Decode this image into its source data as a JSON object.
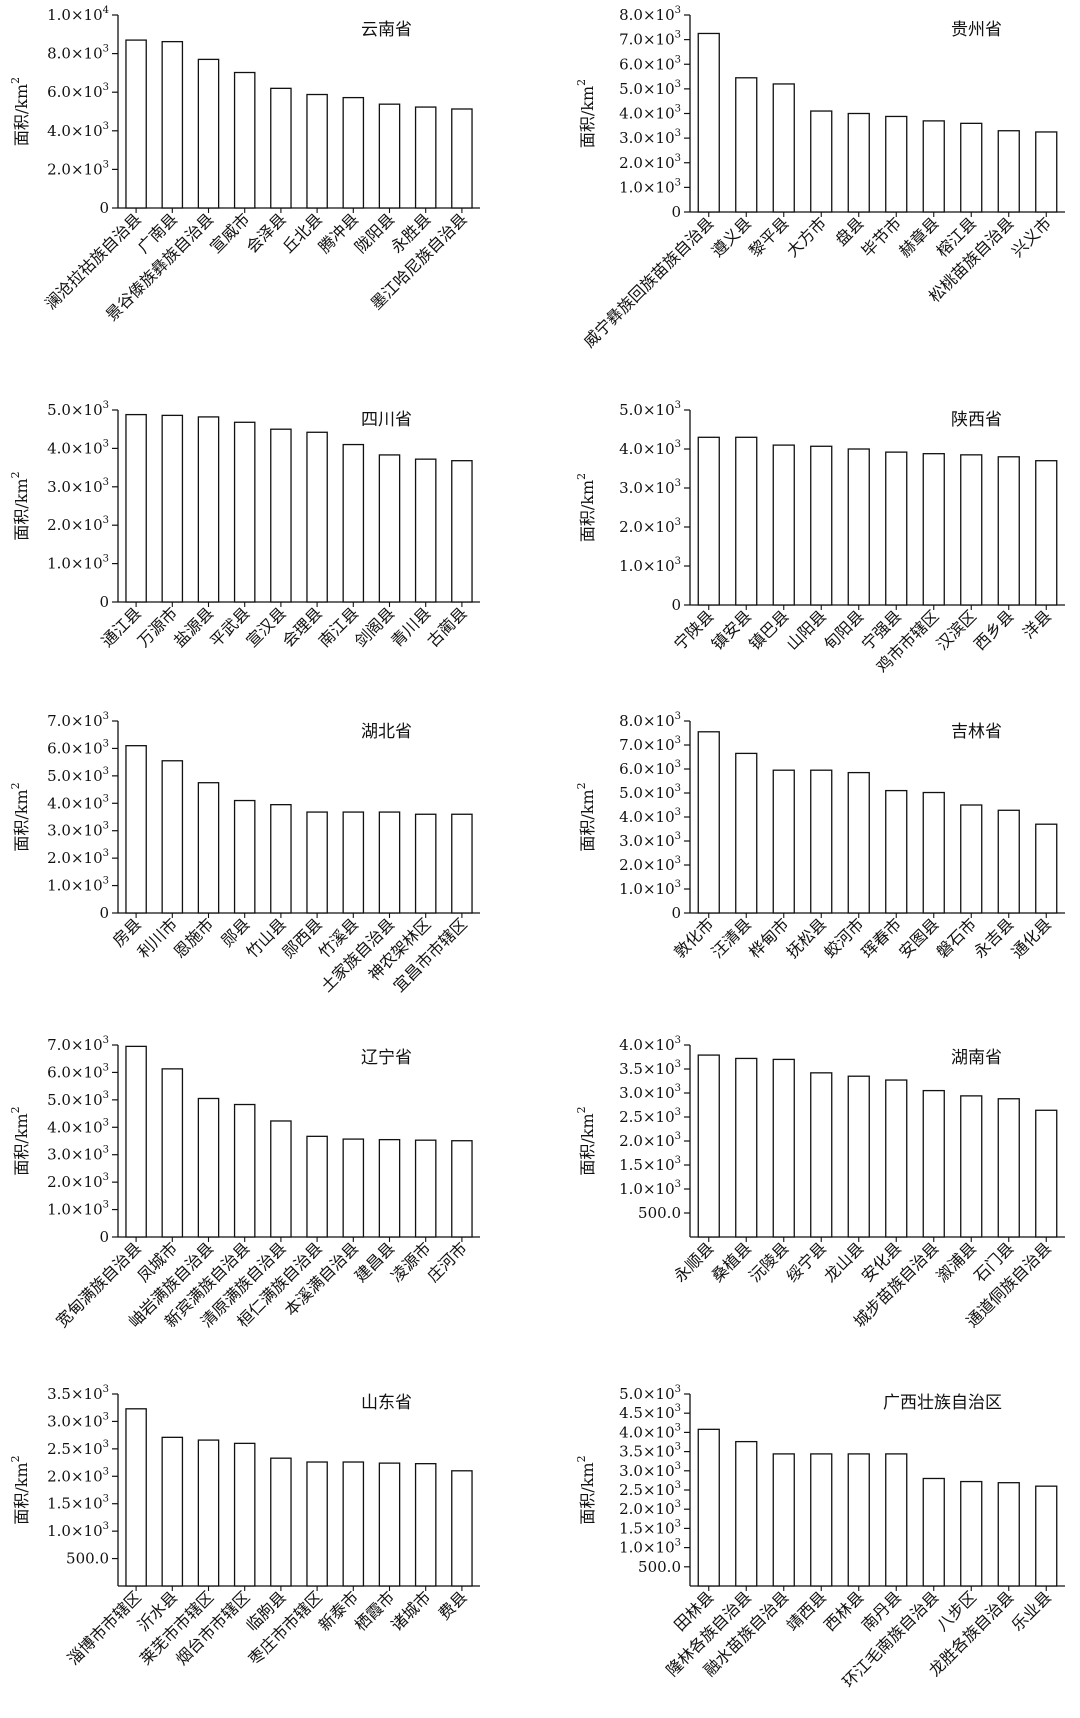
{
  "ylabel_prefix": "面积/km",
  "ylabel_sup": "2",
  "chart_data": [
    {
      "type": "bar",
      "title": "云南省",
      "ylim": [
        0,
        10000
      ],
      "yticks": [
        {
          "v": 0,
          "m": "0",
          "e": ""
        },
        {
          "v": 2000,
          "m": "2.0×10",
          "e": "3"
        },
        {
          "v": 4000,
          "m": "4.0×10",
          "e": "3"
        },
        {
          "v": 6000,
          "m": "6.0×10",
          "e": "3"
        },
        {
          "v": 8000,
          "m": "8.0×10",
          "e": "3"
        },
        {
          "v": 10000,
          "m": "1.0×10",
          "e": "4"
        }
      ],
      "categories": [
        "澜沧拉祜族自治县",
        "广南县",
        "景谷傣族彝族自治县",
        "宣威市",
        "会泽县",
        "丘北县",
        "腾冲县",
        "陇阳县",
        "永胜县",
        "墨江哈尼族自治县"
      ],
      "values": [
        8700,
        8620,
        7700,
        7020,
        6200,
        5880,
        5720,
        5380,
        5230,
        5130
      ]
    },
    {
      "type": "bar",
      "title": "贵州省",
      "ylim": [
        0,
        8000
      ],
      "yticks": [
        {
          "v": 0,
          "m": "0",
          "e": ""
        },
        {
          "v": 1000,
          "m": "1.0×10",
          "e": "3"
        },
        {
          "v": 2000,
          "m": "2.0×10",
          "e": "3"
        },
        {
          "v": 3000,
          "m": "3.0×10",
          "e": "3"
        },
        {
          "v": 4000,
          "m": "4.0×10",
          "e": "3"
        },
        {
          "v": 5000,
          "m": "5.0×10",
          "e": "3"
        },
        {
          "v": 6000,
          "m": "6.0×10",
          "e": "3"
        },
        {
          "v": 7000,
          "m": "7.0×10",
          "e": "3"
        },
        {
          "v": 8000,
          "m": "8.0×10",
          "e": "3"
        }
      ],
      "categories": [
        "威宁彝族回族苗族自治县",
        "遵义县",
        "黎平县",
        "大方市",
        "盘县",
        "毕节市",
        "赫章县",
        "榕江县",
        "松桃苗族自治县",
        "兴义市"
      ],
      "values": [
        7250,
        5450,
        5200,
        4100,
        4000,
        3880,
        3700,
        3600,
        3300,
        3250
      ]
    },
    {
      "type": "bar",
      "title": "四川省",
      "ylim": [
        0,
        5000
      ],
      "yticks": [
        {
          "v": 0,
          "m": "0",
          "e": ""
        },
        {
          "v": 1000,
          "m": "1.0×10",
          "e": "3"
        },
        {
          "v": 2000,
          "m": "2.0×10",
          "e": "3"
        },
        {
          "v": 3000,
          "m": "3.0×10",
          "e": "3"
        },
        {
          "v": 4000,
          "m": "4.0×10",
          "e": "3"
        },
        {
          "v": 5000,
          "m": "5.0×10",
          "e": "3"
        }
      ],
      "categories": [
        "通江县",
        "万源市",
        "盐源县",
        "平武县",
        "宣汉县",
        "会理县",
        "南江县",
        "剑阁县",
        "青川县",
        "古蔺县"
      ],
      "values": [
        4880,
        4860,
        4820,
        4680,
        4500,
        4420,
        4100,
        3830,
        3720,
        3680
      ]
    },
    {
      "type": "bar",
      "title": "陕西省",
      "ylim": [
        0,
        5000
      ],
      "yticks": [
        {
          "v": 0,
          "m": "0",
          "e": ""
        },
        {
          "v": 1000,
          "m": "1.0×10",
          "e": "3"
        },
        {
          "v": 2000,
          "m": "2.0×10",
          "e": "3"
        },
        {
          "v": 3000,
          "m": "3.0×10",
          "e": "3"
        },
        {
          "v": 4000,
          "m": "4.0×10",
          "e": "3"
        },
        {
          "v": 5000,
          "m": "5.0×10",
          "e": "3"
        }
      ],
      "categories": [
        "宁陕县",
        "镇安县",
        "镇巴县",
        "山阳县",
        "旬阳县",
        "宁强县",
        "鸡市市辖区",
        "汉滨区",
        "西乡县",
        "洋县"
      ],
      "values": [
        4300,
        4300,
        4100,
        4070,
        4000,
        3920,
        3880,
        3850,
        3800,
        3700
      ]
    },
    {
      "type": "bar",
      "title": "湖北省",
      "ylim": [
        0,
        7000
      ],
      "yticks": [
        {
          "v": 0,
          "m": "0",
          "e": ""
        },
        {
          "v": 1000,
          "m": "1.0×10",
          "e": "3"
        },
        {
          "v": 2000,
          "m": "2.0×10",
          "e": "3"
        },
        {
          "v": 3000,
          "m": "3.0×10",
          "e": "3"
        },
        {
          "v": 4000,
          "m": "4.0×10",
          "e": "3"
        },
        {
          "v": 5000,
          "m": "5.0×10",
          "e": "3"
        },
        {
          "v": 6000,
          "m": "6.0×10",
          "e": "3"
        },
        {
          "v": 7000,
          "m": "7.0×10",
          "e": "3"
        }
      ],
      "categories": [
        "房县",
        "利川市",
        "恩施市",
        "郧县",
        "竹山县",
        "郧西县",
        "竹溪县",
        "土家族自治县",
        "神农架林区",
        "宜昌市市辖区"
      ],
      "values": [
        6100,
        5550,
        4750,
        4100,
        3950,
        3680,
        3680,
        3680,
        3600,
        3600
      ]
    },
    {
      "type": "bar",
      "title": "吉林省",
      "ylim": [
        0,
        8000
      ],
      "yticks": [
        {
          "v": 0,
          "m": "0",
          "e": ""
        },
        {
          "v": 1000,
          "m": "1.0×10",
          "e": "3"
        },
        {
          "v": 2000,
          "m": "2.0×10",
          "e": "3"
        },
        {
          "v": 3000,
          "m": "3.0×10",
          "e": "3"
        },
        {
          "v": 4000,
          "m": "4.0×10",
          "e": "3"
        },
        {
          "v": 5000,
          "m": "5.0×10",
          "e": "3"
        },
        {
          "v": 6000,
          "m": "6.0×10",
          "e": "3"
        },
        {
          "v": 7000,
          "m": "7.0×10",
          "e": "3"
        },
        {
          "v": 8000,
          "m": "8.0×10",
          "e": "3"
        }
      ],
      "categories": [
        "敦化市",
        "汪清县",
        "桦甸市",
        "抚松县",
        "蛟河市",
        "珲春市",
        "安图县",
        "磐石市",
        "永吉县",
        "通化县"
      ],
      "values": [
        7550,
        6650,
        5950,
        5950,
        5850,
        5100,
        5020,
        4500,
        4280,
        3700
      ]
    },
    {
      "type": "bar",
      "title": "辽宁省",
      "ylim": [
        0,
        7000
      ],
      "yticks": [
        {
          "v": 0,
          "m": "0",
          "e": ""
        },
        {
          "v": 1000,
          "m": "1.0×10",
          "e": "3"
        },
        {
          "v": 2000,
          "m": "2.0×10",
          "e": "3"
        },
        {
          "v": 3000,
          "m": "3.0×10",
          "e": "3"
        },
        {
          "v": 4000,
          "m": "4.0×10",
          "e": "3"
        },
        {
          "v": 5000,
          "m": "5.0×10",
          "e": "3"
        },
        {
          "v": 6000,
          "m": "6.0×10",
          "e": "3"
        },
        {
          "v": 7000,
          "m": "7.0×10",
          "e": "3"
        }
      ],
      "categories": [
        "宽甸满族自治县",
        "凤城市",
        "岫岩满族自治县",
        "新宾满族自治县",
        "清原满族自治县",
        "桓仁满族自治县",
        "本溪满自治县",
        "建昌县",
        "凌源市",
        "庄河市"
      ],
      "values": [
        6950,
        6130,
        5050,
        4830,
        4230,
        3670,
        3570,
        3550,
        3530,
        3510
      ]
    },
    {
      "type": "bar",
      "title": "湖南省",
      "ylim": [
        0,
        4000
      ],
      "yticks": [
        {
          "v": 500,
          "m": "500.0",
          "e": ""
        },
        {
          "v": 1000,
          "m": "1.0×10",
          "e": "3"
        },
        {
          "v": 1500,
          "m": "1.5×10",
          "e": "3"
        },
        {
          "v": 2000,
          "m": "2.0×10",
          "e": "3"
        },
        {
          "v": 2500,
          "m": "2.5×10",
          "e": "3"
        },
        {
          "v": 3000,
          "m": "3.0×10",
          "e": "3"
        },
        {
          "v": 3500,
          "m": "3.5×10",
          "e": "3"
        },
        {
          "v": 4000,
          "m": "4.0×10",
          "e": "3"
        }
      ],
      "categories": [
        "永顺县",
        "桑植县",
        "沅陵县",
        "绥宁县",
        "龙山县",
        "安化县",
        "城步苗族自治县",
        "溆浦县",
        "石门县",
        "通道侗族自治县"
      ],
      "values": [
        3790,
        3720,
        3700,
        3420,
        3350,
        3270,
        3050,
        2940,
        2880,
        2640
      ]
    },
    {
      "type": "bar",
      "title": "山东省",
      "ylim": [
        0,
        3500
      ],
      "yticks": [
        {
          "v": 500,
          "m": "500.0",
          "e": ""
        },
        {
          "v": 1000,
          "m": "1.0×10",
          "e": "3"
        },
        {
          "v": 1500,
          "m": "1.5×10",
          "e": "3"
        },
        {
          "v": 2000,
          "m": "2.0×10",
          "e": "3"
        },
        {
          "v": 2500,
          "m": "2.5×10",
          "e": "3"
        },
        {
          "v": 3000,
          "m": "3.0×10",
          "e": "3"
        },
        {
          "v": 3500,
          "m": "3.5×10",
          "e": "3"
        }
      ],
      "categories": [
        "淄博市市辖区",
        "沂水县",
        "莱芜市市辖区",
        "烟台市市辖区",
        "临朐县",
        "枣庄市市辖区",
        "新泰市",
        "栖霞市",
        "诸城市",
        "费县"
      ],
      "values": [
        3230,
        2710,
        2660,
        2600,
        2330,
        2260,
        2260,
        2240,
        2230,
        2100
      ]
    },
    {
      "type": "bar",
      "title": "广西壮族自治区",
      "ylim": [
        0,
        5000
      ],
      "yticks": [
        {
          "v": 500,
          "m": "500.0",
          "e": ""
        },
        {
          "v": 1000,
          "m": "1.0×10",
          "e": "3"
        },
        {
          "v": 1500,
          "m": "1.5×10",
          "e": "3"
        },
        {
          "v": 2000,
          "m": "2.0×10",
          "e": "3"
        },
        {
          "v": 2500,
          "m": "2.5×10",
          "e": "3"
        },
        {
          "v": 3000,
          "m": "3.0×10",
          "e": "3"
        },
        {
          "v": 3500,
          "m": "3.5×10",
          "e": "3"
        },
        {
          "v": 4000,
          "m": "4.0×10",
          "e": "3"
        },
        {
          "v": 4500,
          "m": "4.5×10",
          "e": "3"
        },
        {
          "v": 5000,
          "m": "5.0×10",
          "e": "3"
        }
      ],
      "categories": [
        "田林县",
        "隆林各族自治县",
        "融水苗族自治县",
        "靖西县",
        "西林县",
        "南丹县",
        "环江毛南族自治县",
        "八步区",
        "龙胜各族自治县",
        "乐业县"
      ],
      "values": [
        4080,
        3760,
        3440,
        3440,
        3440,
        3440,
        2800,
        2720,
        2690,
        2600
      ]
    }
  ]
}
